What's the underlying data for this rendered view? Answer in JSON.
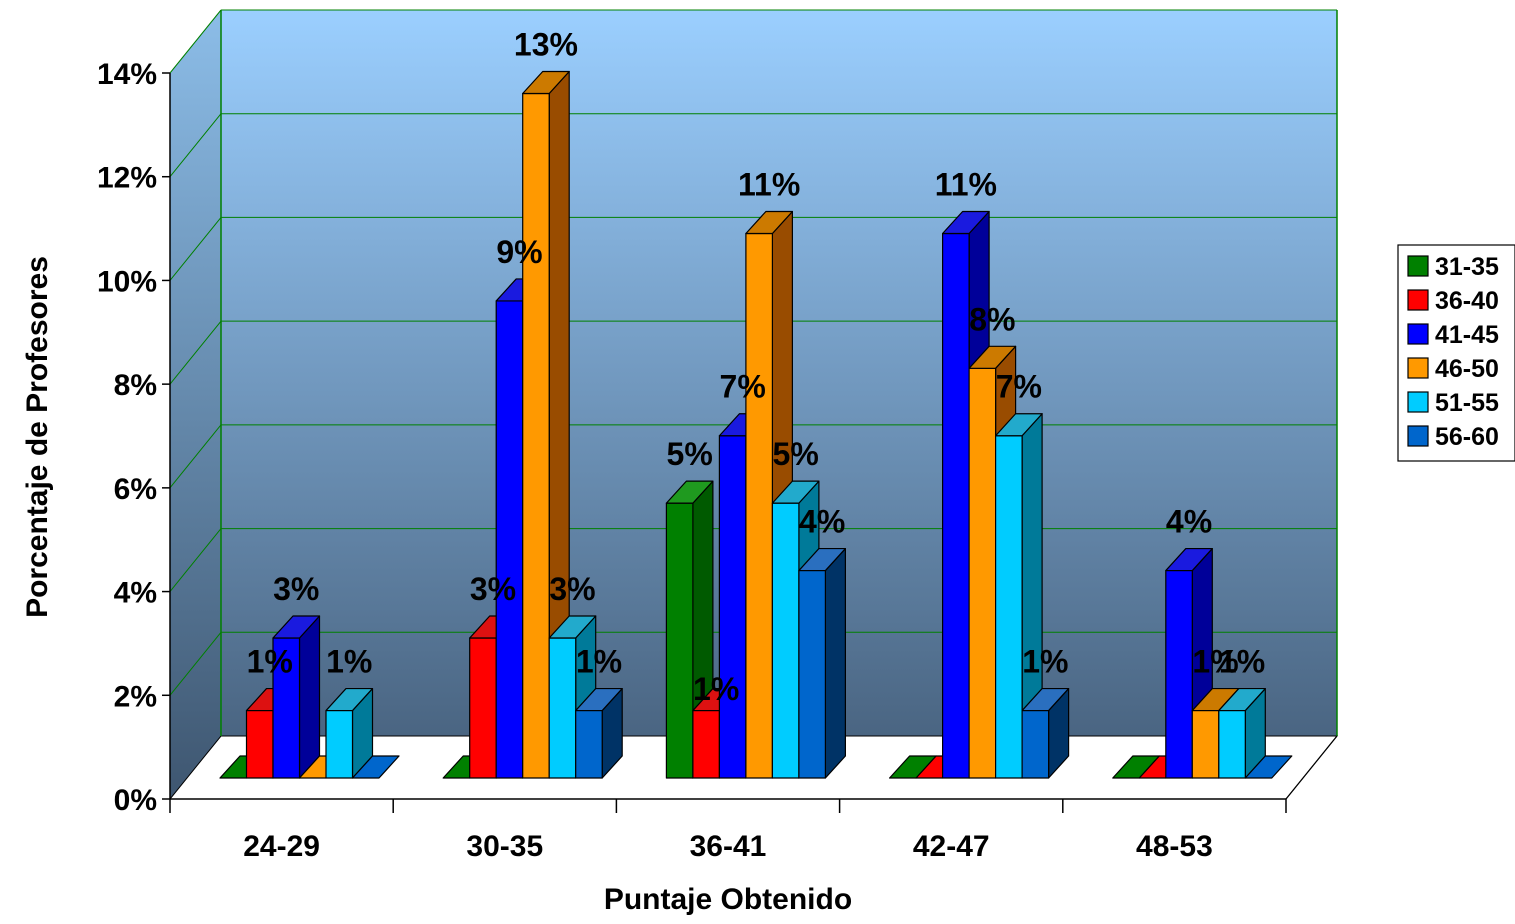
{
  "chart_data": {
    "type": "bar",
    "title": "",
    "xlabel": "Puntaje Obtenido",
    "ylabel": "Porcentaje de Profesores",
    "ylim": [
      0,
      14
    ],
    "yticks": [
      "0%",
      "2%",
      "4%",
      "6%",
      "8%",
      "10%",
      "12%",
      "14%"
    ],
    "categories": [
      "24-29",
      "30-35",
      "36-41",
      "42-47",
      "48-53"
    ],
    "grid": true,
    "legend_position": "right",
    "series": [
      {
        "name": "31-35",
        "color": "#008000",
        "side": "#005a00",
        "top": "#1f9a1f",
        "values": [
          0,
          0,
          5.3,
          0,
          0
        ],
        "labels": [
          "",
          "",
          "5%",
          "",
          ""
        ]
      },
      {
        "name": "36-40",
        "color": "#ff0000",
        "side": "#990000",
        "top": "#dd1111",
        "values": [
          1.3,
          2.7,
          1.3,
          0,
          0
        ],
        "labels": [
          "1%",
          "3%",
          "1%",
          "",
          ""
        ]
      },
      {
        "name": "41-45",
        "color": "#0000ff",
        "side": "#000099",
        "top": "#1a1adf",
        "values": [
          2.7,
          9.2,
          6.6,
          10.5,
          4.0
        ],
        "labels": [
          "3%",
          "9%",
          "7%",
          "11%",
          "4%"
        ]
      },
      {
        "name": "46-50",
        "color": "#ff9900",
        "side": "#994c00",
        "top": "#cc7a00",
        "values": [
          0,
          13.2,
          10.5,
          7.9,
          1.3
        ],
        "labels": [
          "",
          "13%",
          "11%",
          "8%",
          "1%"
        ]
      },
      {
        "name": "51-55",
        "color": "#00ccff",
        "side": "#007a99",
        "top": "#22aacc",
        "values": [
          1.3,
          2.7,
          5.3,
          6.6,
          1.3
        ],
        "labels": [
          "1%",
          "3%",
          "5%",
          "7%",
          "1%"
        ]
      },
      {
        "name": "56-60",
        "color": "#0066cc",
        "side": "#003366",
        "top": "#2a6fbf",
        "values": [
          0,
          1.3,
          4.0,
          1.3,
          0
        ],
        "labels": [
          "",
          "1%",
          "4%",
          "1%",
          ""
        ]
      }
    ],
    "highlight_label": {
      "series": 1,
      "category": 2,
      "color": "#ffff00"
    }
  }
}
